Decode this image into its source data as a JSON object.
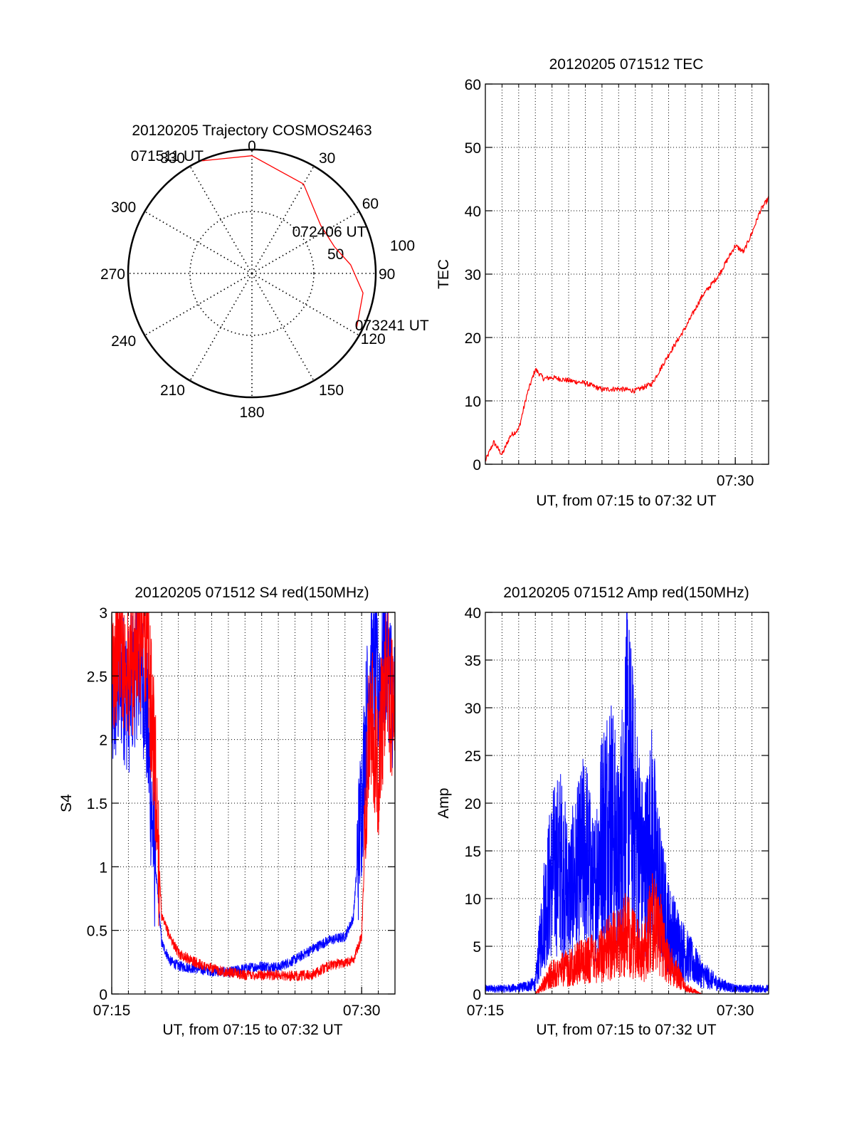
{
  "chart_data": [
    {
      "type": "polar",
      "title": "20120205 Trajectory COSMOS2463",
      "azimuth_labels": [
        "0",
        "30",
        "60",
        "90",
        "120",
        "150",
        "180",
        "210",
        "240",
        "270",
        "300",
        "330"
      ],
      "elevation_ring_labels": [
        "50",
        "100"
      ],
      "series": [
        {
          "color": "#ff0000",
          "points": [
            {
              "azimuth": 336,
              "elevation": 0.5
            },
            {
              "azimuth": 0,
              "elevation": 4.5
            },
            {
              "azimuth": 30,
              "elevation": 15
            },
            {
              "azimuth": 55,
              "elevation": 29
            },
            {
              "azimuth": 72,
              "elevation": 27
            },
            {
              "azimuth": 85,
              "elevation": 18
            },
            {
              "azimuth": 100,
              "elevation": 8
            },
            {
              "azimuth": 118,
              "elevation": 4
            }
          ]
        }
      ],
      "annotations": [
        {
          "text": "071511 UT",
          "azimuth": 336,
          "elevation": 0.5
        },
        {
          "text": "072406 UT",
          "azimuth": 55,
          "elevation": 29
        },
        {
          "text": "073241 UT",
          "azimuth": 118,
          "elevation": 4
        }
      ]
    },
    {
      "type": "line",
      "title": "20120205 071512 TEC",
      "xlabel": "UT, from 07:15 to 07:32 UT",
      "ylabel": "TEC",
      "xlim": [
        "07:15",
        "07:32"
      ],
      "ylim": [
        0,
        60
      ],
      "yticks": [
        0,
        10,
        20,
        30,
        40,
        50,
        60
      ],
      "xtick_labels": [
        {
          "value": "07:30",
          "label": "07:30"
        }
      ],
      "grid": true,
      "series": [
        {
          "color": "#ff0000",
          "x": [
            "07:15:00",
            "07:15:30",
            "07:16:00",
            "07:16:30",
            "07:17:00",
            "07:17:30",
            "07:18:00",
            "07:18:30",
            "07:19:00",
            "07:20:00",
            "07:21:00",
            "07:22:00",
            "07:23:00",
            "07:24:00",
            "07:25:00",
            "07:26:00",
            "07:27:00",
            "07:28:00",
            "07:29:00",
            "07:30:00",
            "07:30:30",
            "07:31:00",
            "07:31:30",
            "07:32:00"
          ],
          "y": [
            0.5,
            3.5,
            1.5,
            4.5,
            5.5,
            11,
            15,
            13.5,
            13.7,
            13.2,
            12.8,
            11.8,
            11.9,
            11.6,
            12.7,
            17.3,
            21.5,
            26.5,
            29.8,
            34.5,
            33.5,
            36.5,
            40,
            42
          ]
        }
      ]
    },
    {
      "type": "line",
      "title": "20120205 071512 S4 red(150MHz)",
      "xlabel": "UT, from 07:15 to 07:32 UT",
      "ylabel": "S4",
      "xlim": [
        "07:15",
        "07:32"
      ],
      "ylim": [
        0,
        3
      ],
      "yticks": [
        "0",
        "0.5",
        "1",
        "1.5",
        "2",
        "2.5",
        "3"
      ],
      "xtick_labels": [
        {
          "value": "07:15",
          "label": "07:15"
        },
        {
          "value": "07:30",
          "label": "07:30"
        }
      ],
      "grid": true,
      "series": [
        {
          "color": "#0000ff",
          "x": [
            "07:15:00",
            "07:15:30",
            "07:16:00",
            "07:16:30",
            "07:17:00",
            "07:17:30",
            "07:18:00",
            "07:18:30",
            "07:19:00",
            "07:20:00",
            "07:21:00",
            "07:22:00",
            "07:23:00",
            "07:24:00",
            "07:25:00",
            "07:26:00",
            "07:27:00",
            "07:28:00",
            "07:29:00",
            "07:29:30",
            "07:30:00",
            "07:30:30",
            "07:31:00",
            "07:31:30",
            "07:32:00"
          ],
          "y": [
            2.2,
            2.5,
            2.3,
            2.6,
            2.4,
            1.2,
            0.4,
            0.26,
            0.22,
            0.2,
            0.18,
            0.17,
            0.2,
            0.22,
            0.21,
            0.27,
            0.35,
            0.42,
            0.45,
            0.6,
            1.5,
            2.6,
            2.4,
            2.7,
            2.2
          ]
        },
        {
          "color": "#ff0000",
          "x": [
            "07:15:00",
            "07:15:30",
            "07:16:00",
            "07:16:30",
            "07:17:00",
            "07:17:30",
            "07:18:00",
            "07:18:30",
            "07:19:00",
            "07:20:00",
            "07:21:00",
            "07:22:00",
            "07:23:00",
            "07:24:00",
            "07:25:00",
            "07:26:00",
            "07:27:00",
            "07:28:00",
            "07:29:00",
            "07:29:30",
            "07:30:00",
            "07:30:30",
            "07:31:00",
            "07:31:30",
            "07:32:00"
          ],
          "y": [
            2.6,
            2.8,
            2.5,
            2.7,
            2.9,
            2.0,
            0.6,
            0.45,
            0.32,
            0.25,
            0.2,
            0.17,
            0.15,
            0.15,
            0.15,
            0.14,
            0.15,
            0.22,
            0.25,
            0.27,
            0.45,
            2.3,
            1.8,
            2.6,
            2.0
          ]
        }
      ]
    },
    {
      "type": "line",
      "title": "20120205 071512 Amp red(150MHz)",
      "xlabel": "UT, from 07:15 to 07:32 UT",
      "ylabel": "Amp",
      "xlim": [
        "07:15",
        "07:32"
      ],
      "ylim": [
        0,
        40
      ],
      "yticks": [
        0,
        5,
        10,
        15,
        20,
        25,
        30,
        35,
        40
      ],
      "xtick_labels": [
        {
          "value": "07:15",
          "label": "07:15"
        },
        {
          "value": "07:30",
          "label": "07:30"
        }
      ],
      "grid": true,
      "series": [
        {
          "color": "#0000ff",
          "x": [
            "07:15:00",
            "07:16:00",
            "07:17:00",
            "07:18:00",
            "07:18:30",
            "07:19:00",
            "07:19:30",
            "07:20:00",
            "07:20:30",
            "07:21:00",
            "07:21:30",
            "07:22:00",
            "07:22:30",
            "07:23:00",
            "07:23:30",
            "07:24:00",
            "07:24:30",
            "07:25:00",
            "07:25:30",
            "07:26:00",
            "07:26:30",
            "07:27:00",
            "07:28:00",
            "07:29:00",
            "07:30:00",
            "07:31:00",
            "07:32:00"
          ],
          "y": [
            0.8,
            0.8,
            0.9,
            1.5,
            12,
            18,
            20,
            15,
            18,
            22,
            15,
            24,
            28,
            20,
            36,
            26,
            18,
            24,
            15,
            10,
            8,
            6,
            3,
            1.5,
            0.8,
            0.8,
            0.8
          ]
        },
        {
          "color": "#ff0000",
          "x": [
            "07:15:00",
            "07:18:00",
            "07:18:30",
            "07:19:00",
            "07:20:00",
            "07:21:00",
            "07:22:00",
            "07:23:00",
            "07:23:30",
            "07:24:00",
            "07:24:30",
            "07:25:00",
            "07:25:30",
            "07:26:00",
            "07:26:30",
            "07:27:00",
            "07:28:00",
            "07:32:00"
          ],
          "y": [
            0,
            0,
            1.5,
            3,
            4,
            5,
            6,
            8,
            9,
            7,
            6,
            11,
            9,
            5,
            3,
            1,
            0,
            0
          ]
        }
      ]
    }
  ]
}
